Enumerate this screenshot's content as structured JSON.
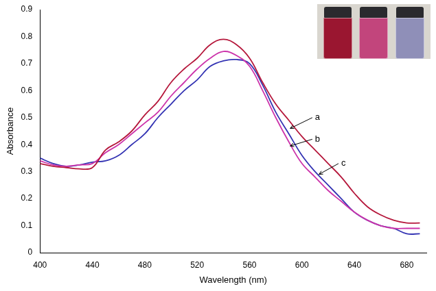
{
  "chart_data": {
    "type": "line",
    "x_label": "Wavelength (nm)",
    "y_label": "Absorbance",
    "x": [
      400,
      410,
      420,
      430,
      440,
      450,
      460,
      470,
      480,
      490,
      500,
      510,
      520,
      530,
      540,
      550,
      560,
      570,
      580,
      590,
      600,
      610,
      620,
      630,
      640,
      650,
      660,
      670,
      680,
      690
    ],
    "series": [
      {
        "color": "#b5173b",
        "values": [
          0.33,
          0.32,
          0.315,
          0.31,
          0.315,
          0.38,
          0.41,
          0.45,
          0.51,
          0.56,
          0.63,
          0.68,
          0.72,
          0.77,
          0.79,
          0.77,
          0.72,
          0.63,
          0.55,
          0.49,
          0.43,
          0.38,
          0.33,
          0.28,
          0.22,
          0.17,
          0.14,
          0.12,
          0.11,
          0.11
        ]
      },
      {
        "color": "#cc33aa",
        "values": [
          0.34,
          0.325,
          0.32,
          0.325,
          0.33,
          0.37,
          0.4,
          0.44,
          0.48,
          0.52,
          0.58,
          0.63,
          0.68,
          0.72,
          0.745,
          0.73,
          0.69,
          0.6,
          0.5,
          0.41,
          0.33,
          0.28,
          0.23,
          0.19,
          0.15,
          0.12,
          0.1,
          0.09,
          0.09,
          0.09
        ]
      },
      {
        "color": "#3333b3",
        "values": [
          0.35,
          0.33,
          0.32,
          0.325,
          0.335,
          0.34,
          0.36,
          0.4,
          0.44,
          0.5,
          0.55,
          0.6,
          0.64,
          0.69,
          0.71,
          0.715,
          0.7,
          0.62,
          0.52,
          0.44,
          0.36,
          0.3,
          0.25,
          0.2,
          0.15,
          0.12,
          0.1,
          0.09,
          0.07,
          0.07
        ]
      }
    ],
    "annotations": [
      {
        "text": "a",
        "x": 610,
        "y": 0.5,
        "target": [
          591,
          0.46
        ]
      },
      {
        "text": "b",
        "x": 610,
        "y": 0.42,
        "target": [
          591,
          0.395
        ]
      },
      {
        "text": "c",
        "x": 630,
        "y": 0.33,
        "target": [
          613,
          0.29
        ]
      }
    ],
    "xlim": [
      400,
      695
    ],
    "xticks": [
      400,
      440,
      480,
      520,
      560,
      600,
      640,
      680
    ],
    "ylim": [
      0,
      0.9
    ],
    "yticks": [
      0,
      0.1,
      0.2,
      0.3,
      0.4,
      0.5,
      0.6,
      0.7,
      0.8,
      0.9
    ],
    "grid": false
  }
}
